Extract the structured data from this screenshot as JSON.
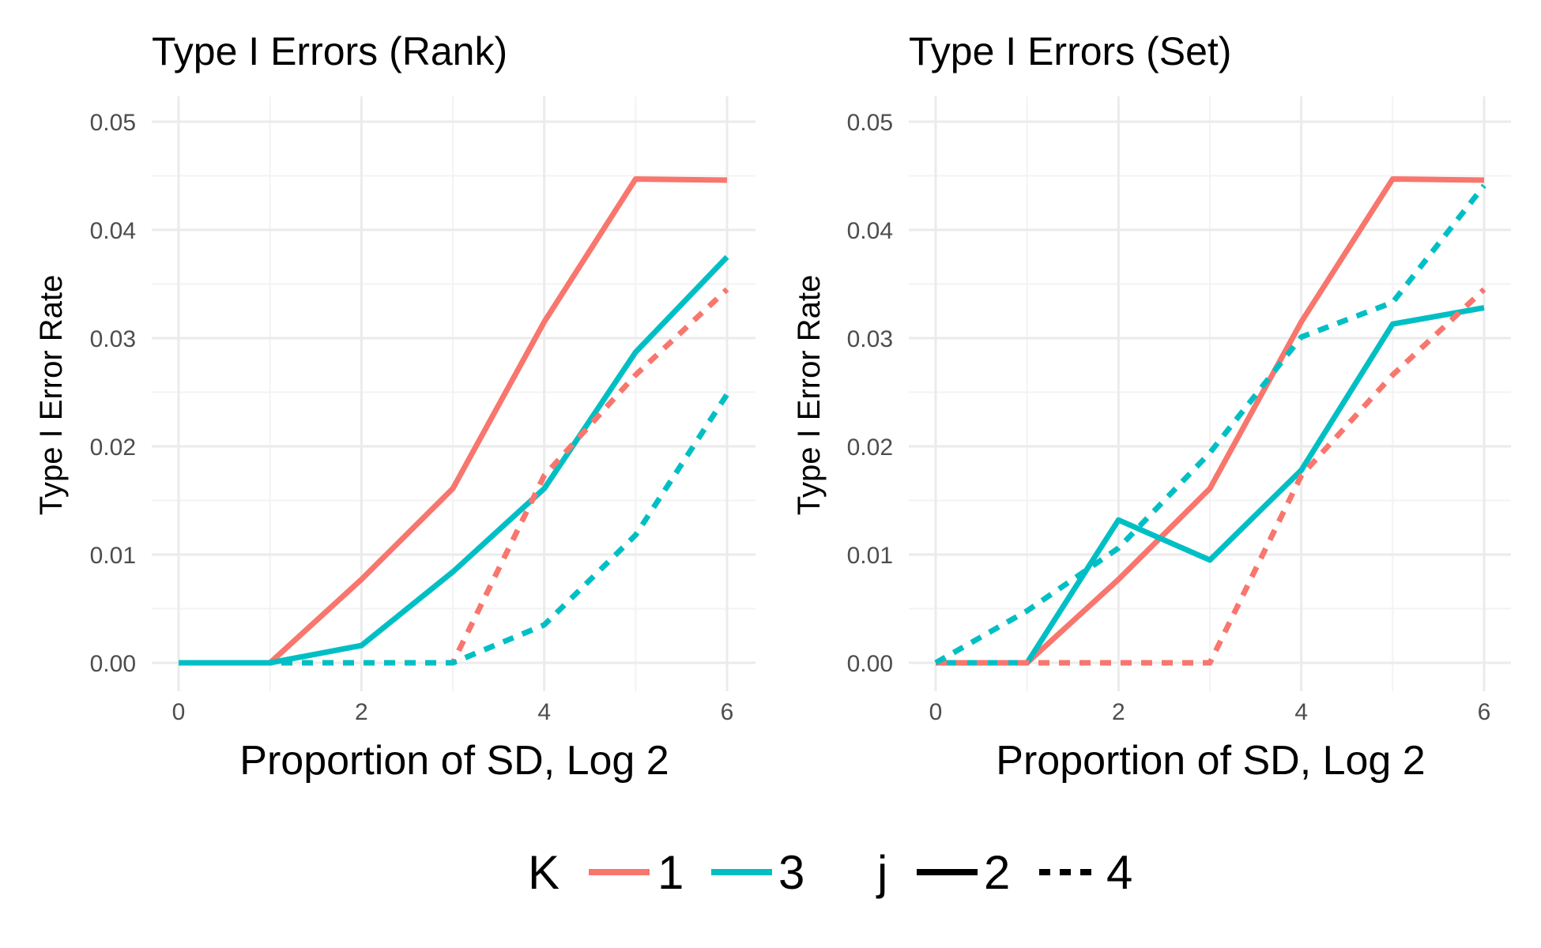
{
  "chart_data": [
    {
      "type": "line",
      "title": "Type I Errors (Rank)",
      "xlabel": "Proportion of SD, Log 2",
      "ylabel": "Type I Error Rate",
      "xlim": [
        0,
        6
      ],
      "ylim": [
        0,
        0.05
      ],
      "x_ticks": [
        "0",
        "2",
        "4",
        "6"
      ],
      "y_ticks": [
        "0.00",
        "0.01",
        "0.02",
        "0.03",
        "0.04",
        "0.05"
      ],
      "grid": true,
      "x": [
        0,
        1,
        2,
        3,
        4,
        5,
        6
      ],
      "series": [
        {
          "K": "1",
          "j": "2",
          "color": "#F8766D",
          "linetype": "solid",
          "values": [
            0,
            0,
            0.0077,
            0.0161,
            0.0315,
            0.0447,
            0.0446
          ]
        },
        {
          "K": "3",
          "j": "2",
          "color": "#00BFC4",
          "linetype": "solid",
          "values": [
            0,
            0,
            0.0016,
            0.0084,
            0.0161,
            0.0287,
            0.0375
          ]
        },
        {
          "K": "1",
          "j": "4",
          "color": "#F8766D",
          "linetype": "dashed",
          "values": [
            0,
            0,
            0,
            0,
            0.0173,
            0.0266,
            0.0345
          ]
        },
        {
          "K": "3",
          "j": "4",
          "color": "#00BFC4",
          "linetype": "dashed",
          "values": [
            0,
            0,
            0,
            0,
            0.0035,
            0.0118,
            0.0248
          ]
        }
      ]
    },
    {
      "type": "line",
      "title": "Type I Errors (Set)",
      "xlabel": "Proportion of SD, Log 2",
      "ylabel": "Type I Error Rate",
      "xlim": [
        0,
        6
      ],
      "ylim": [
        0,
        0.05
      ],
      "x_ticks": [
        "0",
        "2",
        "4",
        "6"
      ],
      "y_ticks": [
        "0.00",
        "0.01",
        "0.02",
        "0.03",
        "0.04",
        "0.05"
      ],
      "grid": true,
      "x": [
        0,
        1,
        2,
        3,
        4,
        5,
        6
      ],
      "series": [
        {
          "K": "1",
          "j": "2",
          "color": "#F8766D",
          "linetype": "solid",
          "values": [
            0,
            0,
            0.0077,
            0.0161,
            0.0315,
            0.0447,
            0.0446
          ]
        },
        {
          "K": "3",
          "j": "2",
          "color": "#00BFC4",
          "linetype": "solid",
          "values": [
            0,
            0,
            0.0132,
            0.0095,
            0.0178,
            0.0313,
            0.0328
          ]
        },
        {
          "K": "1",
          "j": "4",
          "color": "#F8766D",
          "linetype": "dashed",
          "values": [
            0,
            0,
            0,
            0,
            0.0173,
            0.0266,
            0.0345
          ]
        },
        {
          "K": "3",
          "j": "4",
          "color": "#00BFC4",
          "linetype": "dashed",
          "values": [
            0,
            0.0048,
            0.0106,
            0.0194,
            0.0301,
            0.0333,
            0.0441
          ]
        }
      ]
    }
  ],
  "legend": {
    "placement": "bottom",
    "colour_title": "K",
    "colour_items": [
      {
        "label": "1",
        "color": "#F8766D"
      },
      {
        "label": "3",
        "color": "#00BFC4"
      }
    ],
    "linetype_title": "j",
    "linetype_items": [
      {
        "label": "2",
        "linetype": "solid"
      },
      {
        "label": "4",
        "linetype": "dashed"
      }
    ]
  }
}
